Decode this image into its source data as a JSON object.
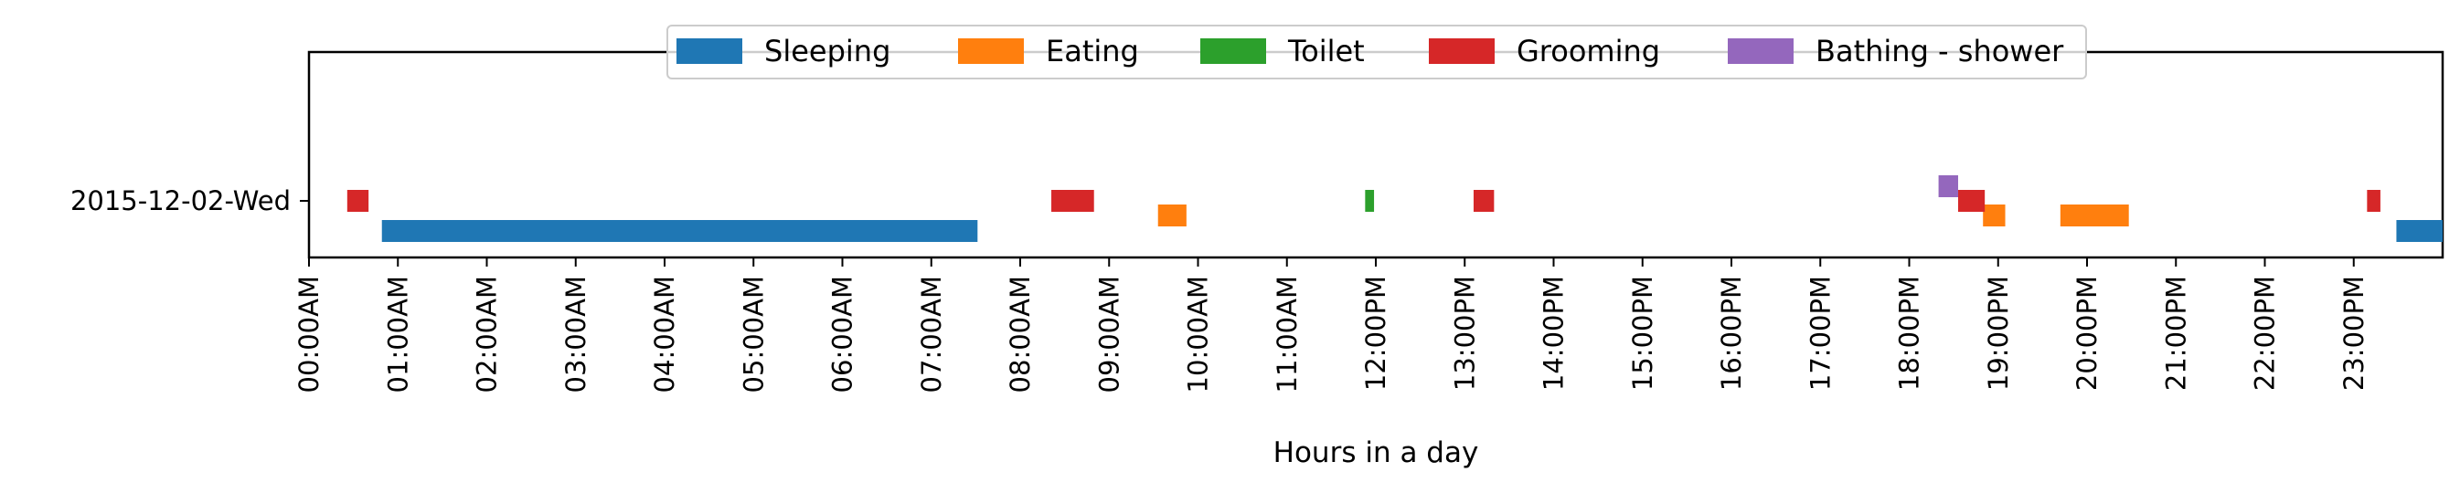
{
  "chart_data": {
    "type": "gantt",
    "title": "",
    "xlabel": "Hours in a day",
    "ylabel": "",
    "xlim": [
      0,
      24
    ],
    "x_tick_labels": [
      "00:00AM",
      "01:00AM",
      "02:00AM",
      "03:00AM",
      "04:00AM",
      "05:00AM",
      "06:00AM",
      "07:00AM",
      "08:00AM",
      "09:00AM",
      "10:00AM",
      "11:00AM",
      "12:00PM",
      "13:00PM",
      "14:00PM",
      "15:00PM",
      "16:00PM",
      "17:00PM",
      "18:00PM",
      "19:00PM",
      "20:00PM",
      "21:00PM",
      "22:00PM",
      "23:00PM"
    ],
    "categories": [
      "2015-12-02-Wed"
    ],
    "legend_position": "top-center",
    "grid": false,
    "series": [
      {
        "name": "Sleeping",
        "color": "#1f77b4",
        "segments": [
          {
            "day": "2015-12-02-Wed",
            "start": 0.82,
            "end": 7.52
          },
          {
            "day": "2015-12-02-Wed",
            "start": 23.48,
            "end": 24.0
          }
        ]
      },
      {
        "name": "Eating",
        "color": "#ff7f0e",
        "segments": [
          {
            "day": "2015-12-02-Wed",
            "start": 9.55,
            "end": 9.87
          },
          {
            "day": "2015-12-02-Wed",
            "start": 18.83,
            "end": 19.08
          },
          {
            "day": "2015-12-02-Wed",
            "start": 19.7,
            "end": 20.47
          }
        ]
      },
      {
        "name": "Toilet",
        "color": "#2ca02c",
        "segments": [
          {
            "day": "2015-12-02-Wed",
            "start": 11.88,
            "end": 11.98
          }
        ]
      },
      {
        "name": "Grooming",
        "color": "#d62728",
        "segments": [
          {
            "day": "2015-12-02-Wed",
            "start": 0.43,
            "end": 0.67
          },
          {
            "day": "2015-12-02-Wed",
            "start": 8.35,
            "end": 8.83
          },
          {
            "day": "2015-12-02-Wed",
            "start": 13.1,
            "end": 13.33
          },
          {
            "day": "2015-12-02-Wed",
            "start": 18.55,
            "end": 18.85
          },
          {
            "day": "2015-12-02-Wed",
            "start": 23.15,
            "end": 23.3
          }
        ]
      },
      {
        "name": "Bathing - shower",
        "color": "#9467bd",
        "segments": [
          {
            "day": "2015-12-02-Wed",
            "start": 18.33,
            "end": 18.55
          }
        ]
      }
    ]
  }
}
